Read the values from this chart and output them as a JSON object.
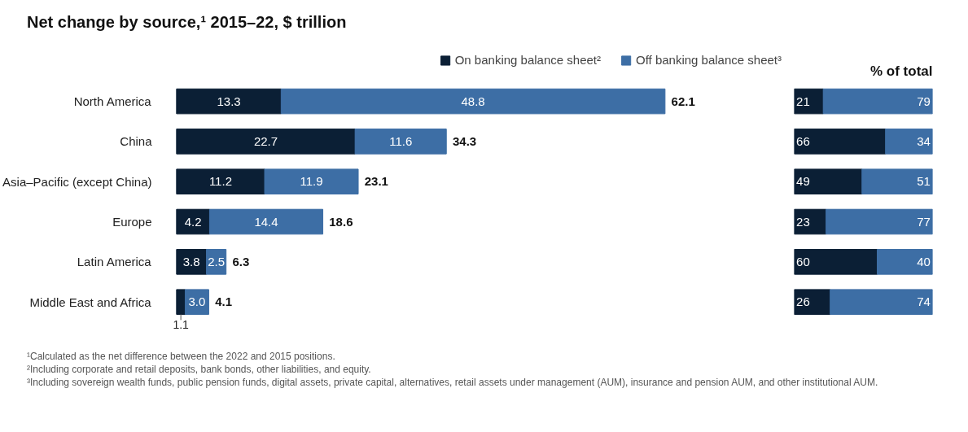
{
  "chart_data": [
    {
      "type": "bar",
      "orientation": "horizontal",
      "stacked": true,
      "legend": "top right",
      "title": "Net change by source,¹ 2015–22, $ trillion",
      "categories": [
        "North America",
        "China",
        "Asia–Pacific (except China)",
        "Europe",
        "Latin America",
        "Middle East and Africa"
      ],
      "series": [
        {
          "name": "On banking balance sheet²",
          "color": "#0b1f35",
          "values": [
            13.3,
            22.7,
            11.2,
            4.2,
            3.8,
            1.1
          ],
          "value_labels": [
            "13.3",
            "22.7",
            "11.2",
            "4.2",
            "3.8",
            "1.1"
          ]
        },
        {
          "name": "Off banking balance sheet³",
          "color": "#3d6ea5",
          "values": [
            48.8,
            11.6,
            11.9,
            14.4,
            2.5,
            3.0
          ],
          "value_labels": [
            "48.8",
            "11.6",
            "11.9",
            "14.4",
            "2.5",
            "3.0"
          ]
        }
      ],
      "totals": [
        "62.1",
        "34.3",
        "23.1",
        "18.6",
        "6.3",
        "4.1"
      ],
      "annotations": [
        "¹Calculated as the net difference between the 2022 and 2015 positions.",
        "²Including corporate and retail deposits, bank bonds, other liabilities, and equity.",
        "³Including sovereign wealth funds, public pension funds, digital assets, private capital, alternatives, retail assets under management (AUM), insurance and pension AUM, and other institutional AUM."
      ]
    },
    {
      "type": "bar",
      "orientation": "horizontal",
      "stacked": true,
      "data_labels": true,
      "title": "% of total",
      "xlim": [
        0,
        100
      ],
      "categories": [
        null,
        null,
        null,
        null,
        null,
        null
      ],
      "series": [
        {
          "color": "#0b1f35",
          "values": [
            21,
            66,
            49,
            23,
            60,
            26
          ]
        },
        {
          "color": "#3d6ea5",
          "values": [
            79,
            34,
            51,
            77,
            40,
            74
          ]
        }
      ]
    }
  ]
}
